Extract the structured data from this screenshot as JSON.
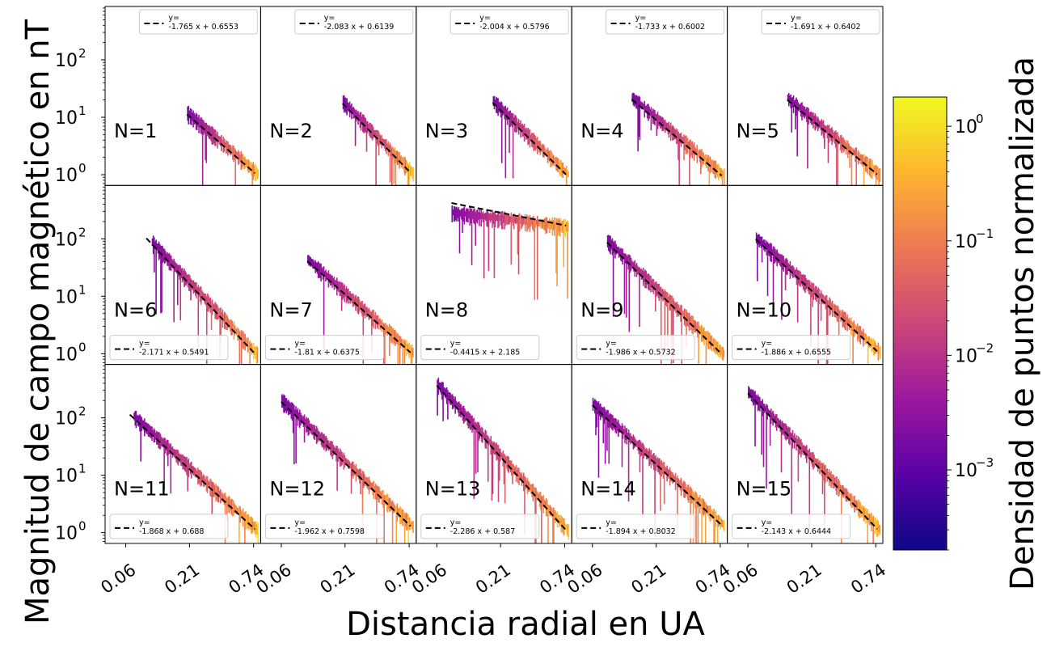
{
  "figure": {
    "xlabel": "Distancia radial en UA",
    "ylabel": "Magnitud de campo magnético en nT",
    "colorbar_label": "Densidad de puntos normalizada"
  },
  "colors": {
    "fit_line": "#000000",
    "colormap": [
      "#0d0887",
      "#5c01a6",
      "#9c179e",
      "#cc4778",
      "#ed7953",
      "#fdb42f",
      "#f0f921"
    ]
  },
  "colorbar": {
    "scale": "log",
    "range": [
      0.0002,
      1.8
    ],
    "ticks": [
      {
        "value": 0.001,
        "base": "10",
        "exp": "−3"
      },
      {
        "value": 0.01,
        "base": "10",
        "exp": "−2"
      },
      {
        "value": 0.1,
        "base": "10",
        "exp": "−1"
      },
      {
        "value": 1,
        "base": "10",
        "exp": "0"
      }
    ]
  },
  "chart_data": {
    "type": "heatmap",
    "xscale": "log",
    "yscale": "log",
    "xlim": [
      0.04,
      0.85
    ],
    "ylim": [
      0.65,
      850
    ],
    "xticks": [
      {
        "value": 0.06,
        "label": "0.06"
      },
      {
        "value": 0.21,
        "label": "0.21"
      },
      {
        "value": 0.74,
        "label": "0.74"
      }
    ],
    "yticks": [
      {
        "value": 1,
        "base": "10",
        "exp": "0"
      },
      {
        "value": 10,
        "base": "10",
        "exp": "1"
      },
      {
        "value": 100,
        "base": "10",
        "exp": "2"
      }
    ],
    "panels": [
      {
        "label": "N=1",
        "fit": {
          "slope": -1.765,
          "intercept": 0.6553,
          "eq_line1": "y=",
          "eq_line2": "-1.765 x + 0.6553"
        },
        "legend_loc": "upper right",
        "x_range": [
          0.2,
          0.8
        ],
        "fit_x": [
          0.2,
          0.8
        ]
      },
      {
        "label": "N=2",
        "fit": {
          "slope": -2.083,
          "intercept": 0.6139,
          "eq_line1": "y=",
          "eq_line2": "-2.083 x + 0.6139"
        },
        "legend_loc": "upper right",
        "x_range": [
          0.2,
          0.8
        ],
        "fit_x": [
          0.2,
          0.8
        ]
      },
      {
        "label": "N=3",
        "fit": {
          "slope": -2.004,
          "intercept": 0.5796,
          "eq_line1": "y=",
          "eq_line2": "-2.004 x + 0.5796"
        },
        "legend_loc": "upper right",
        "x_range": [
          0.18,
          0.8
        ],
        "fit_x": [
          0.18,
          0.8
        ]
      },
      {
        "label": "N=4",
        "fit": {
          "slope": -1.733,
          "intercept": 0.6002,
          "eq_line1": "y=",
          "eq_line2": "-1.733 x + 0.6002"
        },
        "legend_loc": "upper right",
        "x_range": [
          0.13,
          0.8
        ],
        "fit_x": [
          0.13,
          0.8
        ]
      },
      {
        "label": "N=5",
        "fit": {
          "slope": -1.691,
          "intercept": 0.6402,
          "eq_line1": "y=",
          "eq_line2": "-1.691 x + 0.6402"
        },
        "legend_loc": "upper right",
        "x_range": [
          0.13,
          0.8
        ],
        "fit_x": [
          0.13,
          0.8
        ]
      },
      {
        "label": "N=6",
        "fit": {
          "slope": -2.171,
          "intercept": 0.5491,
          "eq_line1": "y=",
          "eq_line2": "-2.171 x + 0.5491"
        },
        "legend_loc": "lower left",
        "x_range": [
          0.1,
          0.8
        ],
        "fit_x": [
          0.09,
          0.8
        ]
      },
      {
        "label": "N=7",
        "fit": {
          "slope": -1.81,
          "intercept": 0.6375,
          "eq_line1": "y=",
          "eq_line2": "-1.81 x + 0.6375"
        },
        "legend_loc": "lower left",
        "x_range": [
          0.1,
          0.8
        ],
        "fit_x": [
          0.1,
          0.8
        ]
      },
      {
        "label": "N=8",
        "fit": {
          "slope": -0.4415,
          "intercept": 2.185,
          "eq_line1": "y=",
          "eq_line2": "-0.4415 x + 2.185"
        },
        "legend_loc": "lower left",
        "x_range": [
          0.08,
          0.8
        ],
        "fit_x": [
          0.08,
          0.8
        ]
      },
      {
        "label": "N=9",
        "fit": {
          "slope": -1.986,
          "intercept": 0.5732,
          "eq_line1": "y=",
          "eq_line2": "-1.986 x + 0.5732"
        },
        "legend_loc": "lower left",
        "x_range": [
          0.08,
          0.8
        ],
        "fit_x": [
          0.08,
          0.8
        ]
      },
      {
        "label": "N=10",
        "fit": {
          "slope": -1.886,
          "intercept": 0.6555,
          "eq_line1": "y=",
          "eq_line2": "-1.886 x + 0.6555"
        },
        "legend_loc": "lower left",
        "x_range": [
          0.07,
          0.8
        ],
        "fit_x": [
          0.07,
          0.8
        ]
      },
      {
        "label": "N=11",
        "fit": {
          "slope": -1.868,
          "intercept": 0.688,
          "eq_line1": "y=",
          "eq_line2": "-1.868 x + 0.688"
        },
        "legend_loc": "lower left",
        "x_range": [
          0.07,
          0.8
        ],
        "fit_x": [
          0.065,
          0.8
        ]
      },
      {
        "label": "N=12",
        "fit": {
          "slope": -1.962,
          "intercept": 0.7598,
          "eq_line1": "y=",
          "eq_line2": "-1.962 x + 0.7598"
        },
        "legend_loc": "lower left",
        "x_range": [
          0.06,
          0.8
        ],
        "fit_x": [
          0.06,
          0.8
        ]
      },
      {
        "label": "N=13",
        "fit": {
          "slope": -2.286,
          "intercept": 0.587,
          "eq_line1": "y=",
          "eq_line2": "-2.286 x + 0.587"
        },
        "legend_loc": "lower left",
        "x_range": [
          0.06,
          0.8
        ],
        "fit_x": [
          0.06,
          0.8
        ]
      },
      {
        "label": "N=14",
        "fit": {
          "slope": -1.894,
          "intercept": 0.8032,
          "eq_line1": "y=",
          "eq_line2": "-1.894 x + 0.8032"
        },
        "legend_loc": "lower left",
        "x_range": [
          0.06,
          0.8
        ],
        "fit_x": [
          0.06,
          0.8
        ]
      },
      {
        "label": "N=15",
        "fit": {
          "slope": -2.143,
          "intercept": 0.6444,
          "eq_line1": "y=",
          "eq_line2": "-2.143 x + 0.6444"
        },
        "legend_loc": "lower left",
        "x_range": [
          0.06,
          0.8
        ],
        "fit_x": [
          0.06,
          0.8
        ]
      }
    ]
  }
}
